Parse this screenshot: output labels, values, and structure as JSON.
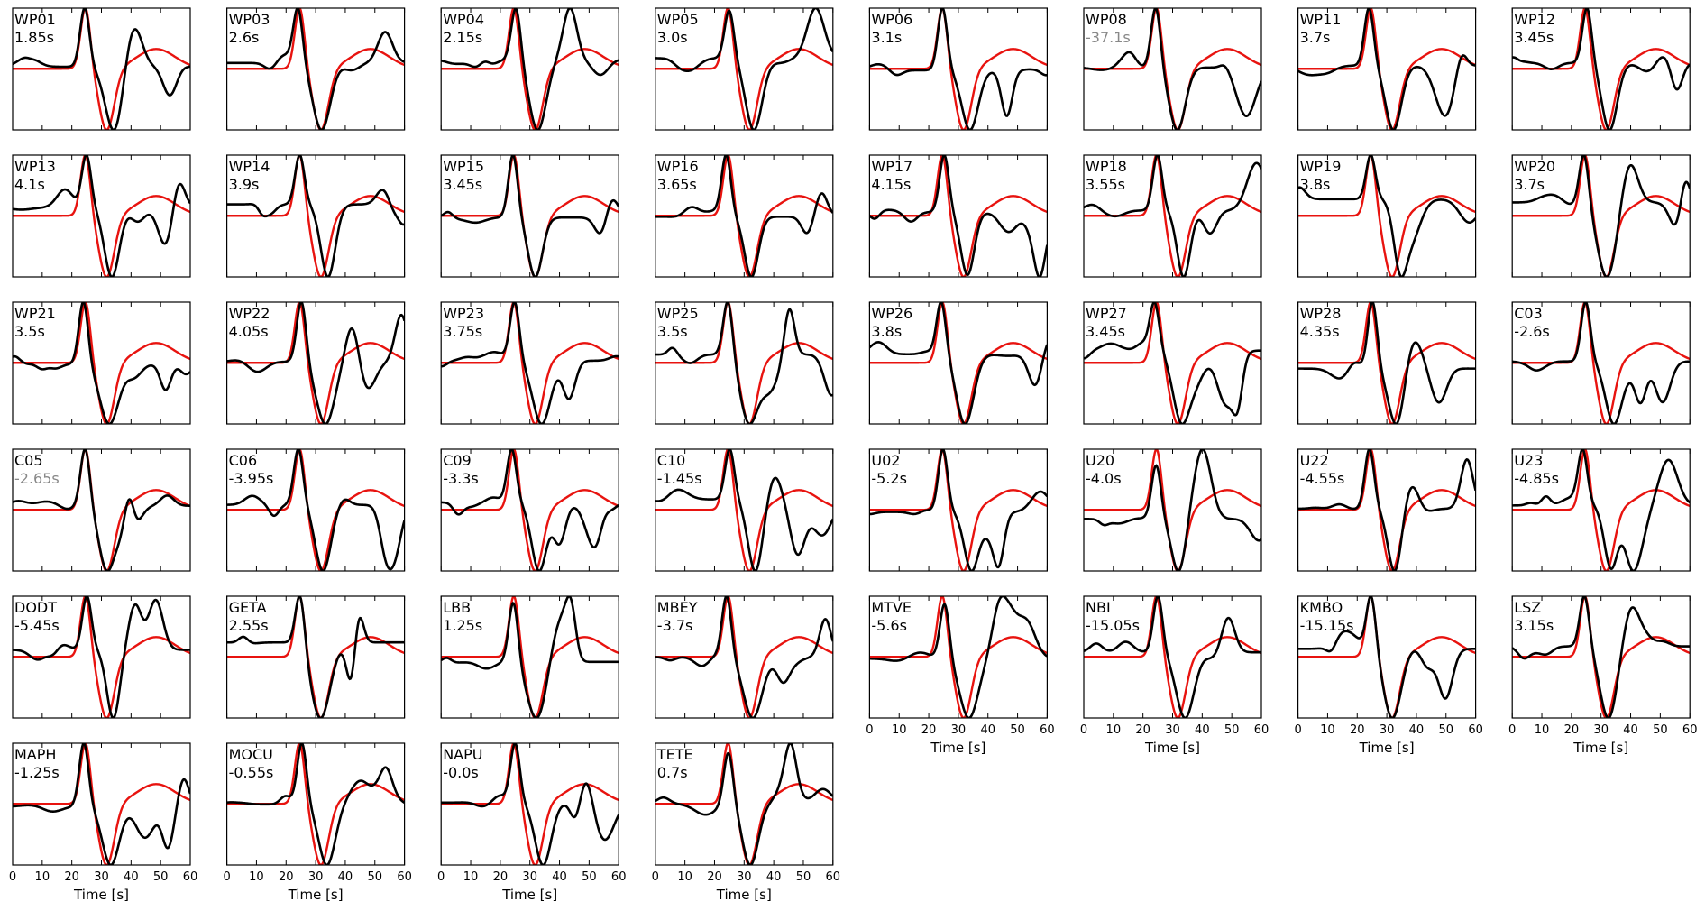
{
  "chart_data": {
    "type": "line",
    "xlabel": "Time [s]",
    "xlim": [
      0,
      60
    ],
    "xticks": [
      0,
      10,
      20,
      30,
      40,
      50,
      60
    ],
    "colors": {
      "observed": "#000000",
      "synthetic": "#e8130f",
      "shift_rejected": "#888888"
    },
    "panels": [
      {
        "station": "WP01",
        "shift": "1.85s",
        "shift_value": 1.85,
        "rejected": false,
        "seed": 1
      },
      {
        "station": "WP03",
        "shift": "2.6s",
        "shift_value": 2.6,
        "rejected": false,
        "seed": 2
      },
      {
        "station": "WP04",
        "shift": "2.15s",
        "shift_value": 2.15,
        "rejected": false,
        "seed": 3
      },
      {
        "station": "WP05",
        "shift": "3.0s",
        "shift_value": 3.0,
        "rejected": false,
        "seed": 4
      },
      {
        "station": "WP06",
        "shift": "3.1s",
        "shift_value": 3.1,
        "rejected": false,
        "seed": 5
      },
      {
        "station": "WP08",
        "shift": "-37.1s",
        "shift_value": -37.1,
        "rejected": true,
        "seed": 6
      },
      {
        "station": "WP11",
        "shift": "3.7s",
        "shift_value": 3.7,
        "rejected": false,
        "seed": 7
      },
      {
        "station": "WP12",
        "shift": "3.45s",
        "shift_value": 3.45,
        "rejected": false,
        "seed": 8
      },
      {
        "station": "WP13",
        "shift": "4.1s",
        "shift_value": 4.1,
        "rejected": false,
        "seed": 9
      },
      {
        "station": "WP14",
        "shift": "3.9s",
        "shift_value": 3.9,
        "rejected": false,
        "seed": 10
      },
      {
        "station": "WP15",
        "shift": "3.45s",
        "shift_value": 3.45,
        "rejected": false,
        "seed": 11
      },
      {
        "station": "WP16",
        "shift": "3.65s",
        "shift_value": 3.65,
        "rejected": false,
        "seed": 12
      },
      {
        "station": "WP17",
        "shift": "4.15s",
        "shift_value": 4.15,
        "rejected": false,
        "seed": 13
      },
      {
        "station": "WP18",
        "shift": "3.55s",
        "shift_value": 3.55,
        "rejected": false,
        "seed": 14
      },
      {
        "station": "WP19",
        "shift": "3.8s",
        "shift_value": 3.8,
        "rejected": false,
        "seed": 15
      },
      {
        "station": "WP20",
        "shift": "3.7s",
        "shift_value": 3.7,
        "rejected": false,
        "seed": 16
      },
      {
        "station": "WP21",
        "shift": "3.5s",
        "shift_value": 3.5,
        "rejected": false,
        "seed": 17
      },
      {
        "station": "WP22",
        "shift": "4.05s",
        "shift_value": 4.05,
        "rejected": false,
        "seed": 18
      },
      {
        "station": "WP23",
        "shift": "3.75s",
        "shift_value": 3.75,
        "rejected": false,
        "seed": 19
      },
      {
        "station": "WP25",
        "shift": "3.5s",
        "shift_value": 3.5,
        "rejected": false,
        "seed": 20
      },
      {
        "station": "WP26",
        "shift": "3.8s",
        "shift_value": 3.8,
        "rejected": false,
        "seed": 21
      },
      {
        "station": "WP27",
        "shift": "3.45s",
        "shift_value": 3.45,
        "rejected": false,
        "seed": 22
      },
      {
        "station": "WP28",
        "shift": "4.35s",
        "shift_value": 4.35,
        "rejected": false,
        "seed": 23
      },
      {
        "station": "C03",
        "shift": "-2.6s",
        "shift_value": -2.6,
        "rejected": false,
        "seed": 24
      },
      {
        "station": "C05",
        "shift": "-2.65s",
        "shift_value": -2.65,
        "rejected": true,
        "seed": 25
      },
      {
        "station": "C06",
        "shift": "-3.95s",
        "shift_value": -3.95,
        "rejected": false,
        "seed": 26
      },
      {
        "station": "C09",
        "shift": "-3.3s",
        "shift_value": -3.3,
        "rejected": false,
        "seed": 27
      },
      {
        "station": "C10",
        "shift": "-1.45s",
        "shift_value": -1.45,
        "rejected": false,
        "seed": 28
      },
      {
        "station": "U02",
        "shift": "-5.2s",
        "shift_value": -5.2,
        "rejected": false,
        "seed": 29
      },
      {
        "station": "U20",
        "shift": "-4.0s",
        "shift_value": -4.0,
        "rejected": false,
        "seed": 30
      },
      {
        "station": "U22",
        "shift": "-4.55s",
        "shift_value": -4.55,
        "rejected": false,
        "seed": 31
      },
      {
        "station": "U23",
        "shift": "-4.85s",
        "shift_value": -4.85,
        "rejected": false,
        "seed": 32
      },
      {
        "station": "DODT",
        "shift": "-5.45s",
        "shift_value": -5.45,
        "rejected": false,
        "seed": 33
      },
      {
        "station": "GETA",
        "shift": "2.55s",
        "shift_value": 2.55,
        "rejected": false,
        "seed": 34
      },
      {
        "station": "LBB",
        "shift": "1.25s",
        "shift_value": 1.25,
        "rejected": false,
        "seed": 35
      },
      {
        "station": "MBEY",
        "shift": "-3.7s",
        "shift_value": -3.7,
        "rejected": false,
        "seed": 36
      },
      {
        "station": "MTVE",
        "shift": "-5.6s",
        "shift_value": -5.6,
        "rejected": false,
        "seed": 37
      },
      {
        "station": "NBI",
        "shift": "-15.05s",
        "shift_value": -15.05,
        "rejected": false,
        "seed": 38
      },
      {
        "station": "KMBO",
        "shift": "-15.15s",
        "shift_value": -15.15,
        "rejected": false,
        "seed": 39
      },
      {
        "station": "LSZ",
        "shift": "3.15s",
        "shift_value": 3.15,
        "rejected": false,
        "seed": 40
      },
      {
        "station": "MAPH",
        "shift": "-1.25s",
        "shift_value": -1.25,
        "rejected": false,
        "seed": 41
      },
      {
        "station": "MOCU",
        "shift": "-0.55s",
        "shift_value": -0.55,
        "rejected": false,
        "seed": 42
      },
      {
        "station": "NAPU",
        "shift": "-0.0s",
        "shift_value": -0.0,
        "rejected": false,
        "seed": 43
      },
      {
        "station": "TETE",
        "shift": "0.7s",
        "shift_value": 0.7,
        "rejected": false,
        "seed": 44
      }
    ]
  }
}
